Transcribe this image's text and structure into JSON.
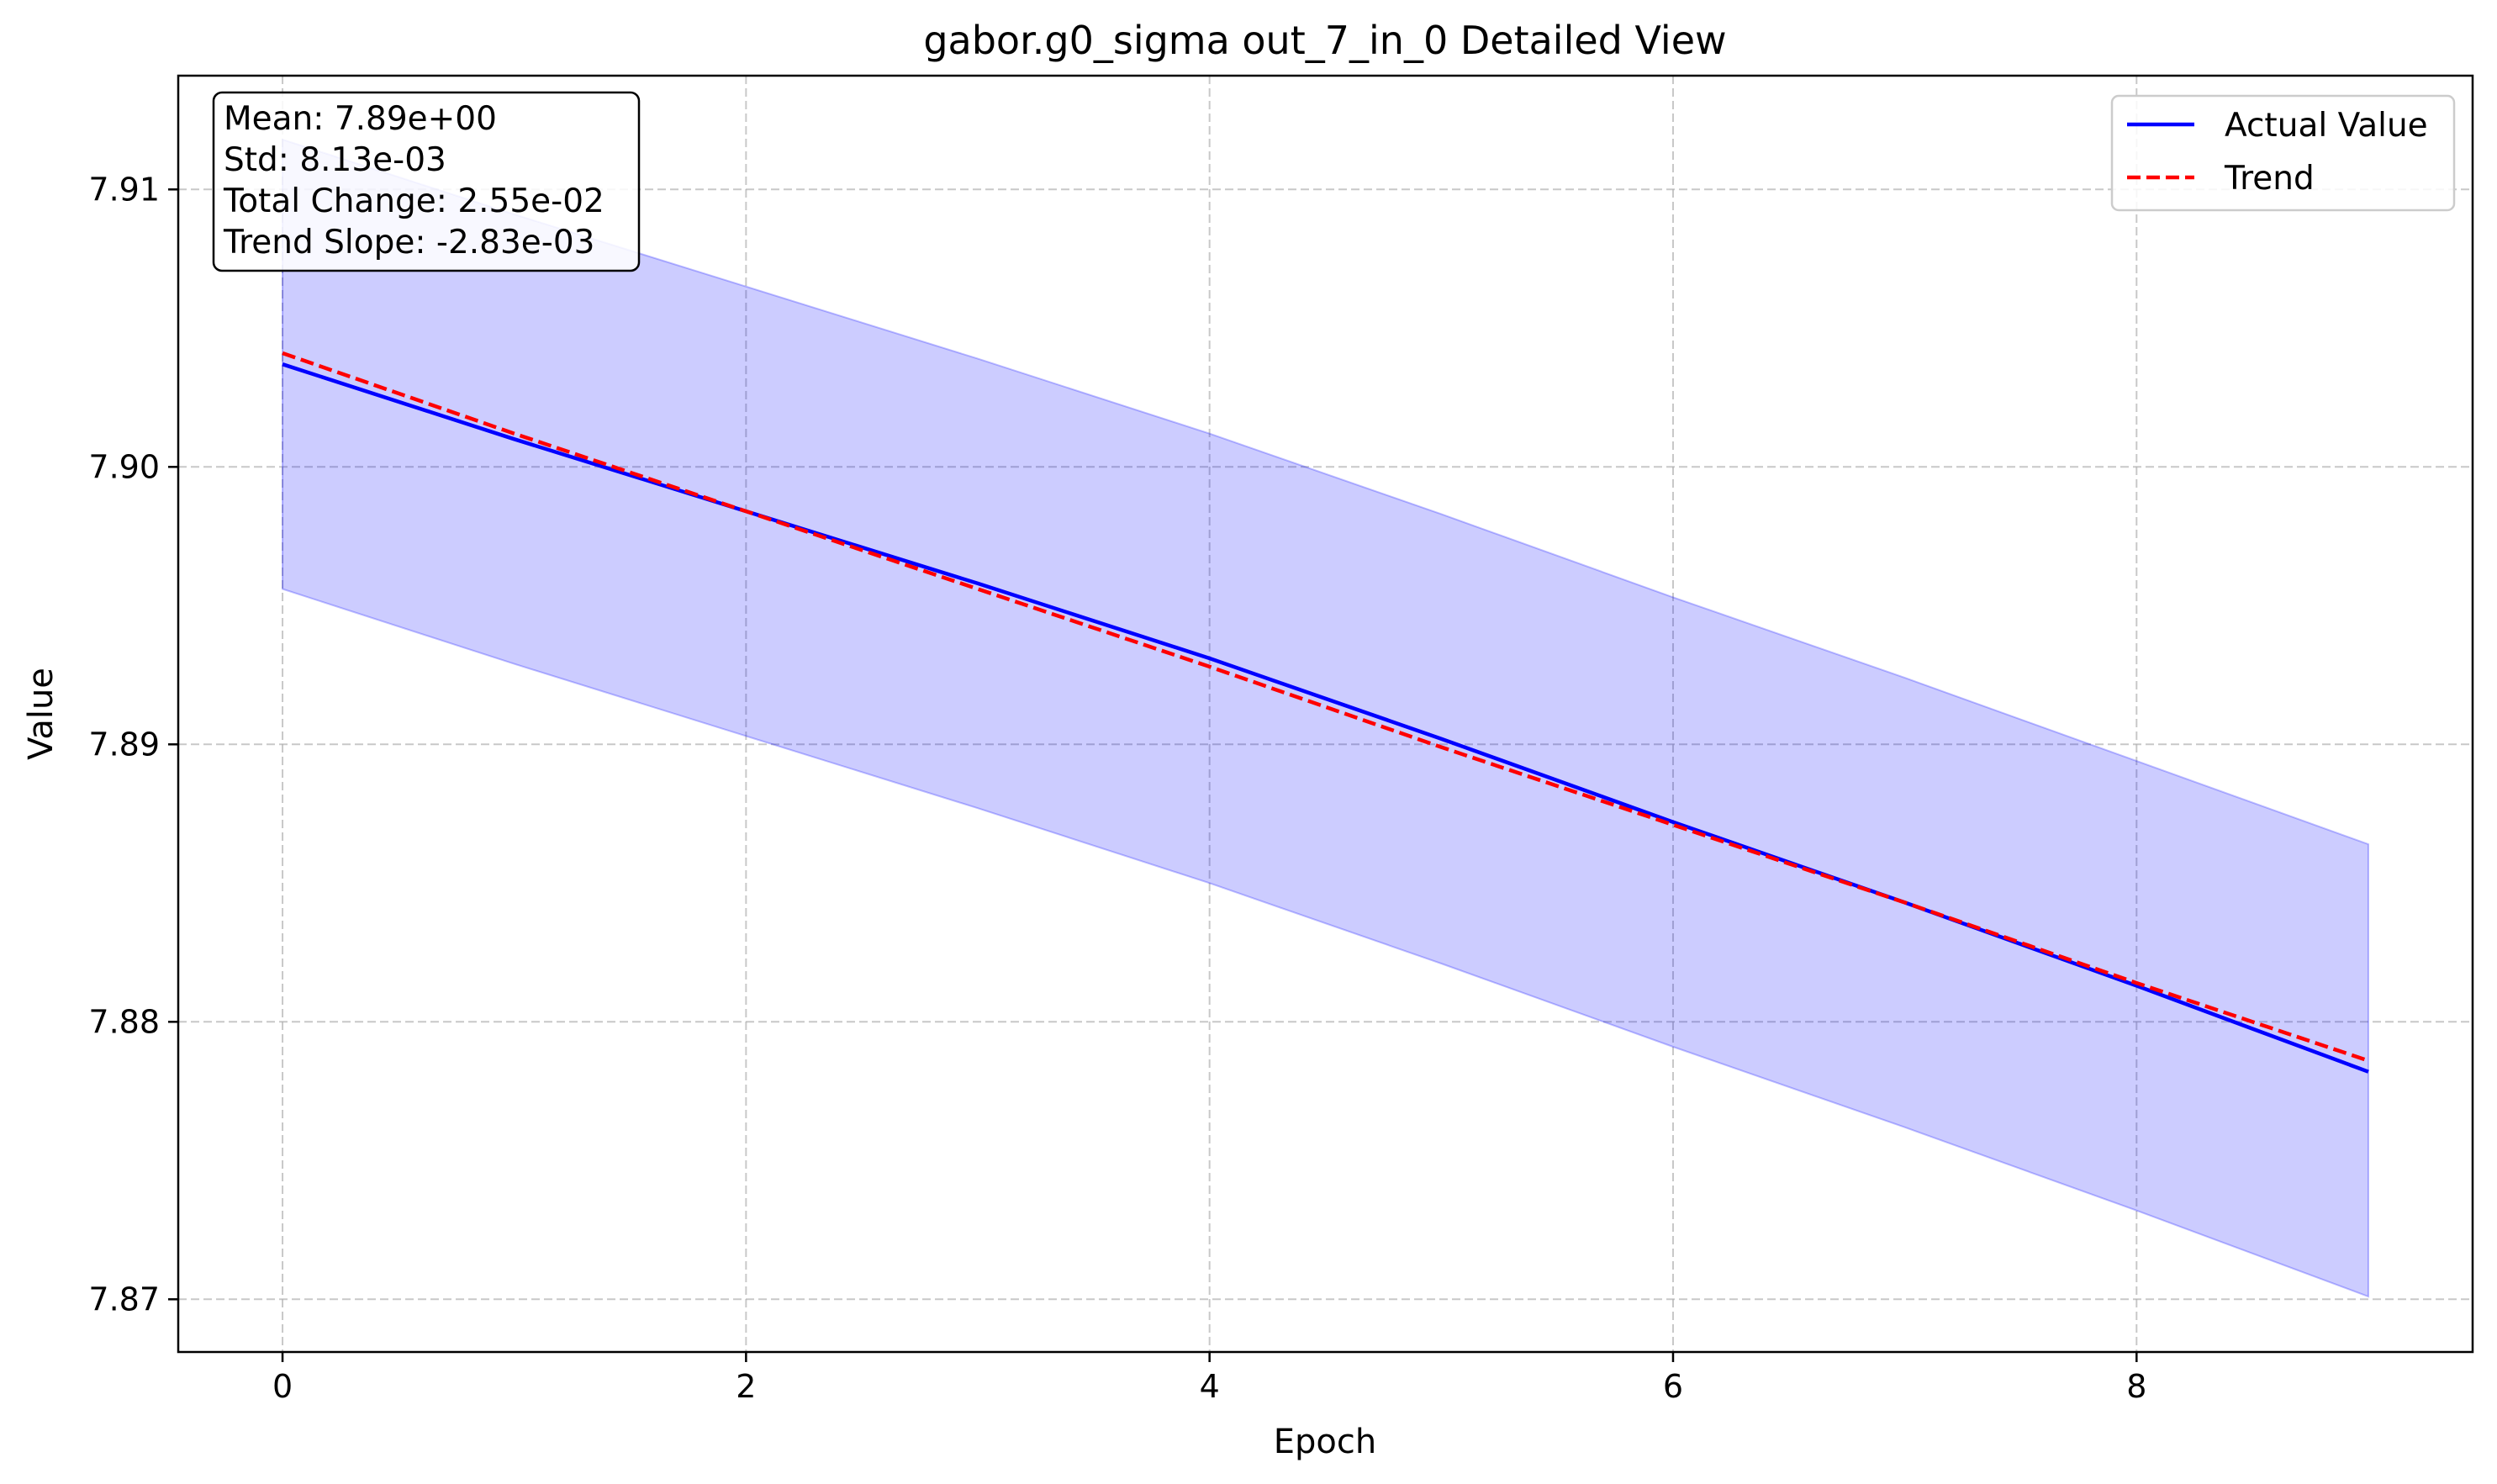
{
  "chart_data": {
    "type": "line",
    "title": "gabor.g0_sigma out_7_in_0 Detailed View",
    "xlabel": "Epoch",
    "ylabel": "Value",
    "xlim": [
      -0.45,
      9.45
    ],
    "ylim": [
      7.8681,
      7.9141
    ],
    "xticks": [
      0,
      2,
      4,
      6,
      8
    ],
    "yticks": [
      7.87,
      7.88,
      7.89,
      7.9,
      7.91
    ],
    "ytick_labels": [
      "7.87",
      "7.88",
      "7.89",
      "7.90",
      "7.91"
    ],
    "grid": true,
    "legend_position": "top-right",
    "x": [
      0,
      1,
      2,
      3,
      4,
      5,
      6,
      7,
      8,
      9
    ],
    "series": [
      {
        "name": "Actual Value",
        "style": "solid",
        "color": "#0000ff",
        "values": [
          7.9037,
          7.901,
          7.8984,
          7.8958,
          7.8931,
          7.8902,
          7.8872,
          7.8843,
          7.8813,
          7.8782
        ]
      },
      {
        "name": "Trend",
        "style": "dashed",
        "color": "#ff0000",
        "values": [
          7.9041,
          7.9012,
          7.8984,
          7.8956,
          7.8928,
          7.8899,
          7.8871,
          7.8843,
          7.8814,
          7.8786
        ]
      }
    ],
    "band": {
      "color": "#0000ff",
      "opacity": 0.2,
      "upper": [
        7.9118,
        7.9091,
        7.9065,
        7.9039,
        7.9012,
        7.8983,
        7.8953,
        7.8924,
        7.8894,
        7.8864
      ],
      "lower": [
        7.8956,
        7.8929,
        7.8903,
        7.8877,
        7.885,
        7.8821,
        7.8791,
        7.8762,
        7.8732,
        7.8701
      ]
    },
    "stats": {
      "mean": "Mean: 7.89e+00",
      "std": "Std: 8.13e-03",
      "total_change": "Total Change: 2.55e-02",
      "trend_slope": "Trend Slope: -2.83e-03"
    }
  }
}
